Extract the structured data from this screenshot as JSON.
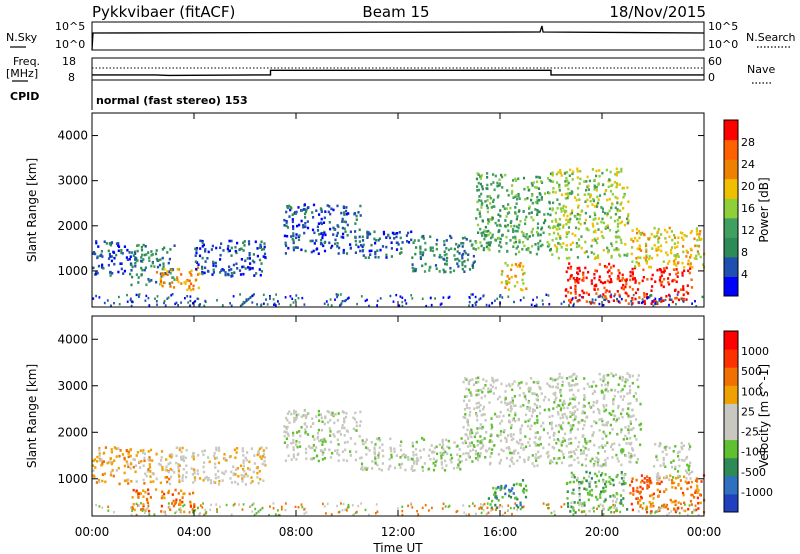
{
  "header": {
    "station": "Pykkvibaer (fitACF)",
    "beam": "Beam 15",
    "date": "18/Nov/2015"
  },
  "strip_labels": {
    "nsky": "N.Sky",
    "nsky_top": "10^5",
    "nsky_bot": "10^0",
    "nsearch": "N.Search",
    "nsearch_top": "10^5",
    "nsearch_bot": "10^0",
    "freq": "Freq.",
    "freq_unit": "[MHz]",
    "freq_top": "18",
    "freq_bot": "8",
    "nave": "Nave",
    "nave_top": "60",
    "nave_bot": "0",
    "cpid": "CPID",
    "cpid_text": "normal (fast stereo) 153"
  },
  "colors": {
    "power": [
      "#0000ff",
      "#1f4fb0",
      "#2e8b57",
      "#40a060",
      "#8fcf3a",
      "#f0c000",
      "#f08000",
      "#ff6000",
      "#ff0000"
    ],
    "velocity": [
      "#2040c0",
      "#3070c0",
      "#2e8b57",
      "#60c030",
      "#c8c8c0",
      "#c8c8c0",
      "#f0a000",
      "#f07000",
      "#ff3000",
      "#ff0000"
    ],
    "ground": "#c8c8c0"
  },
  "chart_data": [
    {
      "type": "heatmap",
      "name": "power-panel",
      "ylabel": "Slant Range [km]",
      "yticks": [
        "1000",
        "2000",
        "3000",
        "4000"
      ],
      "ylim": [
        200,
        4500
      ],
      "xlim": [
        0,
        24
      ],
      "colorbar_label": "Power [dB]",
      "colorbar_ticks": [
        "28",
        "24",
        "20",
        "16",
        "12",
        "8",
        "4"
      ],
      "regions": [
        {
          "t0": 0.0,
          "t1": 1.5,
          "r0": 900,
          "r1": 1700,
          "level": 1
        },
        {
          "t0": 1.5,
          "t1": 3.2,
          "r0": 700,
          "r1": 1600,
          "level": 2
        },
        {
          "t0": 2.5,
          "t1": 4.2,
          "r0": 600,
          "r1": 1100,
          "level": 6
        },
        {
          "t0": 4.0,
          "t1": 6.8,
          "r0": 900,
          "r1": 1700,
          "level": 1
        },
        {
          "t0": 7.5,
          "t1": 10.5,
          "r0": 1400,
          "r1": 2500,
          "level": 1
        },
        {
          "t0": 10.5,
          "t1": 12.5,
          "r0": 1300,
          "r1": 1900,
          "level": 1
        },
        {
          "t0": 12.5,
          "t1": 15.0,
          "r0": 1000,
          "r1": 1800,
          "level": 2
        },
        {
          "t0": 15.0,
          "t1": 18.0,
          "r0": 1400,
          "r1": 3200,
          "level": 3
        },
        {
          "t0": 16.0,
          "t1": 17.0,
          "r0": 600,
          "r1": 1200,
          "level": 5
        },
        {
          "t0": 18.0,
          "t1": 21.0,
          "r0": 1300,
          "r1": 3300,
          "level": 4
        },
        {
          "t0": 18.5,
          "t1": 20.5,
          "r0": 300,
          "r1": 1200,
          "level": 8
        },
        {
          "t0": 20.5,
          "t1": 23.5,
          "r0": 300,
          "r1": 1100,
          "level": 8
        },
        {
          "t0": 21.0,
          "t1": 24.0,
          "r0": 1100,
          "r1": 2000,
          "level": 5
        }
      ]
    },
    {
      "type": "heatmap",
      "name": "velocity-panel",
      "ylabel": "Slant Range [km]",
      "yticks": [
        "1000",
        "2000",
        "3000",
        "4000"
      ],
      "ylim": [
        200,
        4500
      ],
      "xlim": [
        0,
        24
      ],
      "xlabel": "Time UT",
      "xticks": [
        "00:00",
        "04:00",
        "08:00",
        "12:00",
        "16:00",
        "20:00",
        "00:00"
      ],
      "colorbar_label": "Velocity [m s^-1]",
      "colorbar_ticks": [
        "1000",
        "500",
        "100",
        "25",
        "-25",
        "-100",
        "-500",
        "-1000"
      ],
      "regions": [
        {
          "t0": 0.0,
          "t1": 3.0,
          "r0": 900,
          "r1": 1700,
          "level": 6
        },
        {
          "t0": 3.0,
          "t1": 6.8,
          "r0": 900,
          "r1": 1700,
          "level": 5
        },
        {
          "t0": 1.5,
          "t1": 4.0,
          "r0": 300,
          "r1": 800,
          "level": 7
        },
        {
          "t0": 7.5,
          "t1": 10.5,
          "r0": 1400,
          "r1": 2500,
          "level": 4
        },
        {
          "t0": 10.5,
          "t1": 14.5,
          "r0": 1200,
          "r1": 1900,
          "level": 4
        },
        {
          "t0": 14.5,
          "t1": 18.0,
          "r0": 1300,
          "r1": 3200,
          "level": 4
        },
        {
          "t0": 15.5,
          "t1": 17.0,
          "r0": 400,
          "r1": 1000,
          "level": 2
        },
        {
          "t0": 18.0,
          "t1": 21.5,
          "r0": 1300,
          "r1": 3300,
          "level": 4
        },
        {
          "t0": 18.5,
          "t1": 21.0,
          "r0": 300,
          "r1": 1200,
          "level": 3
        },
        {
          "t0": 21.0,
          "t1": 24.0,
          "r0": 300,
          "r1": 1100,
          "level": 7
        },
        {
          "t0": 22.0,
          "t1": 23.5,
          "r0": 1000,
          "r1": 1800,
          "level": 4
        }
      ]
    }
  ],
  "frequency_series": {
    "x": [
      0,
      2.5,
      3.0,
      7.0,
      7.0,
      18.0,
      18.0,
      24.0
    ],
    "y": [
      10.3,
      10.3,
      10.1,
      10.3,
      12.4,
      12.4,
      10.3,
      10.3
    ]
  }
}
